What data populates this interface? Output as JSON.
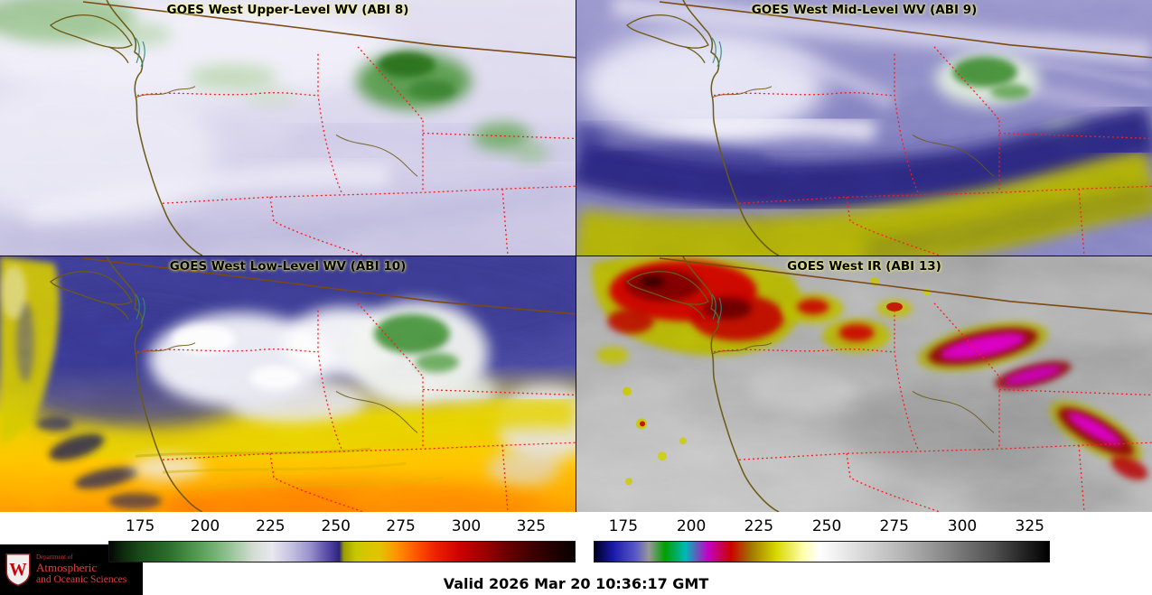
{
  "panels": [
    {
      "title": "GOES West Upper-Level WV (ABI 8)"
    },
    {
      "title": "GOES West Mid-Level WV (ABI 9)"
    },
    {
      "title": "GOES West Low-Level WV (ABI 10)"
    },
    {
      "title": "GOES West IR (ABI 13)"
    }
  ],
  "colorbars": [
    {
      "id": "wv",
      "ticks": [
        "175",
        "200",
        "225",
        "250",
        "275",
        "300",
        "325"
      ],
      "tick_positions_pct": [
        6.8,
        20.7,
        34.7,
        48.7,
        62.6,
        76.6,
        90.5
      ],
      "stops": [
        [
          "#050505",
          0
        ],
        [
          "#0d2b0d",
          3
        ],
        [
          "#1a4d1a",
          7
        ],
        [
          "#2e6e2e",
          13
        ],
        [
          "#4d944d",
          18
        ],
        [
          "#77b377",
          23
        ],
        [
          "#a8cca8",
          27.5
        ],
        [
          "#d4ddd4",
          31
        ],
        [
          "#e8e7ef",
          35
        ],
        [
          "#c6c1e1",
          39
        ],
        [
          "#9a94cc",
          43
        ],
        [
          "#6e64b4",
          45.5
        ],
        [
          "#46399a",
          48
        ],
        [
          "#2c2478",
          49.4
        ],
        [
          "#9c9c00",
          50.4
        ],
        [
          "#c8c800",
          53
        ],
        [
          "#e2c400",
          58
        ],
        [
          "#ff9000",
          62
        ],
        [
          "#ff5500",
          66
        ],
        [
          "#ee2200",
          70
        ],
        [
          "#cc0000",
          75.5
        ],
        [
          "#980000",
          81
        ],
        [
          "#660000",
          86
        ],
        [
          "#3d0000",
          91
        ],
        [
          "#180000",
          97
        ],
        [
          "#0a0000",
          100
        ]
      ]
    },
    {
      "id": "ir",
      "ticks": [
        "175",
        "200",
        "225",
        "250",
        "275",
        "300",
        "325"
      ],
      "tick_positions_pct": [
        6.5,
        21.4,
        36.2,
        51.1,
        65.9,
        80.8,
        95.6
      ],
      "stops": [
        [
          "#000020",
          0
        ],
        [
          "#1818a8",
          4
        ],
        [
          "#5858c8",
          9
        ],
        [
          "#989898",
          12
        ],
        [
          "#00a000",
          15.5
        ],
        [
          "#00b8b8",
          20
        ],
        [
          "#c400c4",
          25
        ],
        [
          "#cc0000",
          30
        ],
        [
          "#a07800",
          34.5
        ],
        [
          "#d8d800",
          40
        ],
        [
          "#ffffb0",
          46
        ],
        [
          "#ffffff",
          49.5
        ],
        [
          "#dcdcdc",
          58
        ],
        [
          "#b4b4b4",
          68
        ],
        [
          "#848484",
          78
        ],
        [
          "#505050",
          88
        ],
        [
          "#202020",
          95
        ],
        [
          "#000000",
          100
        ]
      ]
    }
  ],
  "footer": {
    "valid_time": "Valid 2026 Mar 20 10:36:17 GMT"
  },
  "logo": {
    "crest_letter": "W",
    "dept_prefix": "Department of",
    "line1": "Atmospheric",
    "line2": "and Oceanic Sciences"
  }
}
